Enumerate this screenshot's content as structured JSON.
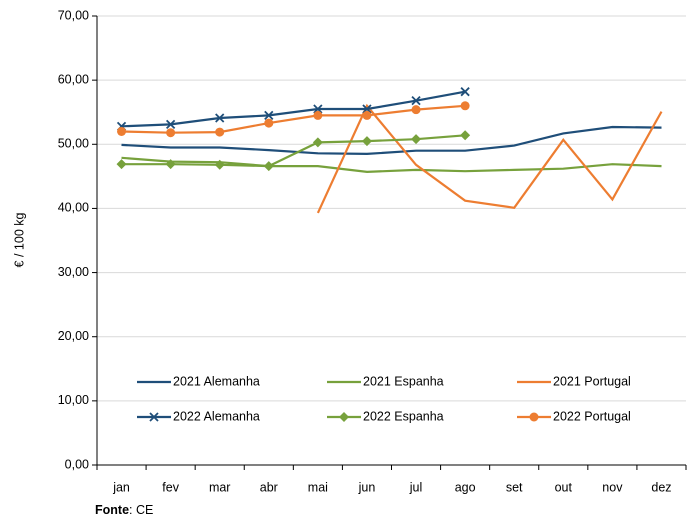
{
  "chart_data": {
    "type": "line",
    "y_label": "€ / 100 kg",
    "categories": [
      "jan",
      "fev",
      "mar",
      "abr",
      "mai",
      "jun",
      "jul",
      "ago",
      "set",
      "out",
      "nov",
      "dez"
    ],
    "series": [
      {
        "name": "2021 Alemanha",
        "color": "#1f4e79",
        "marker": "none",
        "values": [
          49.9,
          49.5,
          49.5,
          49.1,
          48.6,
          48.5,
          49.0,
          49.0,
          49.8,
          51.7,
          52.7,
          52.6
        ]
      },
      {
        "name": "2021 Espanha",
        "color": "#77a13c",
        "marker": "none",
        "values": [
          47.9,
          47.3,
          47.2,
          46.6,
          46.6,
          45.7,
          46.0,
          45.8,
          46.0,
          46.2,
          46.9,
          46.6
        ]
      },
      {
        "name": "2021 Portugal",
        "color": "#ed7d31",
        "marker": "none",
        "values": [
          null,
          null,
          null,
          null,
          39.3,
          56.0,
          46.8,
          41.2,
          40.1,
          50.7,
          41.4,
          55.1
        ]
      },
      {
        "name": "2022 Alemanha",
        "color": "#1f4e79",
        "marker": "x",
        "values": [
          52.8,
          53.1,
          54.1,
          54.5,
          55.5,
          55.5,
          56.8,
          58.2,
          null,
          null,
          null,
          null
        ]
      },
      {
        "name": "2022 Espanha",
        "color": "#77a13c",
        "marker": "diamond",
        "values": [
          46.9,
          46.9,
          46.8,
          46.6,
          50.3,
          50.5,
          50.8,
          51.4,
          null,
          null,
          null,
          null
        ]
      },
      {
        "name": "2022 Portugal",
        "color": "#ed7d31",
        "marker": "circle",
        "values": [
          52.0,
          51.8,
          51.9,
          53.3,
          54.5,
          54.5,
          55.4,
          56.0,
          null,
          null,
          null,
          null
        ]
      }
    ],
    "ylim": [
      0,
      70
    ],
    "yticks": [
      {
        "value": 0,
        "label": "0,00"
      },
      {
        "value": 10,
        "label": "10,00"
      },
      {
        "value": 20,
        "label": "20,00"
      },
      {
        "value": 30,
        "label": "30,00"
      },
      {
        "value": 40,
        "label": "40,00"
      },
      {
        "value": 50,
        "label": "50,00"
      },
      {
        "value": 60,
        "label": "60,00"
      },
      {
        "value": 70,
        "label": "70,00"
      }
    ],
    "grid": true,
    "legend": "bottom",
    "source_label": "Fonte",
    "source_text": ": CE"
  }
}
